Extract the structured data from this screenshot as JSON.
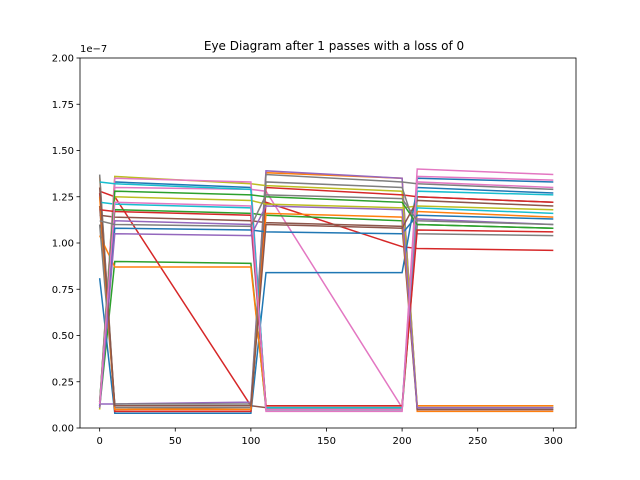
{
  "chart_data": {
    "type": "line",
    "title": "Eye Diagram after 1 passes with a loss of 0",
    "xlabel": "",
    "ylabel": "",
    "y_offset_label": "1e−7",
    "xlim": [
      -13,
      315
    ],
    "ylim": [
      0,
      2.0
    ],
    "grid": false,
    "x_ticks": [
      0,
      50,
      100,
      150,
      200,
      250,
      300
    ],
    "x_tick_labels": [
      "0",
      "50",
      "100",
      "150",
      "200",
      "250",
      "300"
    ],
    "y_ticks": [
      0,
      0.25,
      0.5,
      0.75,
      1.0,
      1.25,
      1.5,
      1.75,
      2.0
    ],
    "y_tick_labels": [
      "0.00",
      "0.25",
      "0.50",
      "0.75",
      "1.00",
      "1.25",
      "1.50",
      "1.75",
      "2.00"
    ],
    "colors": [
      "#1f77b4",
      "#ff7f0e",
      "#2ca02c",
      "#d62728",
      "#9467bd",
      "#8c564b",
      "#e377c2",
      "#7f7f7f",
      "#bcbd22",
      "#17becf"
    ],
    "series": [
      {
        "x": [
          0,
          10,
          100,
          110,
          200,
          210,
          300
        ],
        "y": [
          0.12,
          1.33,
          1.3,
          0.1,
          0.1,
          1.35,
          1.33
        ]
      },
      {
        "x": [
          0,
          10,
          100,
          110,
          200,
          210,
          300
        ],
        "y": [
          1.36,
          0.1,
          0.11,
          1.38,
          1.35,
          0.09,
          0.09
        ]
      },
      {
        "x": [
          0,
          10,
          100,
          110,
          200,
          210,
          300
        ],
        "y": [
          0.11,
          0.9,
          0.89,
          0.1,
          0.1,
          1.1,
          1.08
        ]
      },
      {
        "x": [
          0,
          10,
          100,
          110,
          200,
          210,
          300
        ],
        "y": [
          1.28,
          1.25,
          0.12,
          1.22,
          0.98,
          0.97,
          0.96
        ]
      },
      {
        "x": [
          0,
          10,
          100,
          110,
          200,
          210,
          300
        ],
        "y": [
          0.13,
          0.13,
          0.14,
          1.39,
          1.35,
          0.1,
          0.1
        ]
      },
      {
        "x": [
          0,
          10,
          100,
          110,
          200,
          210,
          300
        ],
        "y": [
          1.2,
          0.12,
          0.12,
          0.11,
          0.11,
          1.25,
          1.22
        ]
      },
      {
        "x": [
          0,
          10,
          100,
          110,
          200,
          210,
          300
        ],
        "y": [
          0.1,
          1.3,
          1.29,
          1.28,
          0.11,
          1.4,
          1.37
        ]
      },
      {
        "x": [
          0,
          10,
          100,
          110,
          200,
          210,
          300
        ],
        "y": [
          1.37,
          0.11,
          0.11,
          1.37,
          1.33,
          1.32,
          1.29
        ]
      },
      {
        "x": [
          0,
          10,
          100,
          110,
          200,
          210,
          300
        ],
        "y": [
          0.12,
          1.36,
          1.32,
          1.31,
          1.28,
          0.12,
          0.12
        ]
      },
      {
        "x": [
          0,
          10,
          100,
          110,
          200,
          210,
          300
        ],
        "y": [
          1.22,
          1.21,
          1.19,
          0.1,
          0.1,
          1.19,
          1.16
        ]
      },
      {
        "x": [
          0,
          10,
          100,
          110,
          200,
          210,
          300
        ],
        "y": [
          0.81,
          0.08,
          0.08,
          0.84,
          0.84,
          1.3,
          1.27
        ]
      },
      {
        "x": [
          0,
          10,
          100,
          110,
          200,
          210,
          300
        ],
        "y": [
          1.04,
          0.87,
          0.87,
          0.11,
          0.11,
          1.17,
          1.14
        ]
      },
      {
        "x": [
          0,
          10,
          100,
          110,
          200,
          210,
          300
        ],
        "y": [
          0.14,
          1.18,
          1.16,
          1.15,
          1.12,
          0.11,
          0.11
        ]
      },
      {
        "x": [
          0,
          10,
          100,
          110,
          200,
          210,
          300
        ],
        "y": [
          1.27,
          0.09,
          0.09,
          1.3,
          1.26,
          1.25,
          1.22
        ]
      },
      {
        "x": [
          0,
          10,
          100,
          110,
          200,
          210,
          300
        ],
        "y": [
          0.11,
          1.12,
          1.1,
          0.12,
          0.12,
          1.13,
          1.1
        ]
      },
      {
        "x": [
          0,
          10,
          100,
          110,
          200,
          210,
          300
        ],
        "y": [
          1.15,
          1.14,
          1.12,
          1.11,
          1.09,
          0.1,
          0.1
        ]
      },
      {
        "x": [
          0,
          10,
          100,
          110,
          200,
          210,
          300
        ],
        "y": [
          0.13,
          1.35,
          1.33,
          0.09,
          0.09,
          1.36,
          1.34
        ]
      },
      {
        "x": [
          0,
          10,
          100,
          110,
          200,
          210,
          300
        ],
        "y": [
          1.1,
          0.13,
          0.13,
          1.33,
          1.3,
          1.05,
          1.04
        ]
      },
      {
        "x": [
          0,
          10,
          100,
          110,
          200,
          210,
          300
        ],
        "y": [
          0.1,
          1.25,
          1.23,
          1.21,
          1.19,
          1.2,
          1.18
        ]
      },
      {
        "x": [
          0,
          10,
          100,
          110,
          200,
          210,
          300
        ],
        "y": [
          1.33,
          1.32,
          1.29,
          0.11,
          0.11,
          1.28,
          1.26
        ]
      },
      {
        "x": [
          0,
          10,
          100,
          110,
          200,
          210,
          300
        ],
        "y": [
          0.12,
          1.08,
          1.07,
          1.06,
          1.05,
          1.15,
          1.13
        ]
      },
      {
        "x": [
          0,
          10,
          100,
          110,
          200,
          210,
          300
        ],
        "y": [
          1.25,
          0.1,
          0.1,
          1.16,
          1.14,
          0.12,
          0.12
        ]
      },
      {
        "x": [
          0,
          10,
          100,
          110,
          200,
          210,
          300
        ],
        "y": [
          0.14,
          1.28,
          1.26,
          1.25,
          1.22,
          1.1,
          1.08
        ]
      },
      {
        "x": [
          0,
          10,
          100,
          110,
          200,
          210,
          300
        ],
        "y": [
          1.18,
          1.17,
          1.15,
          0.12,
          0.12,
          1.07,
          1.06
        ]
      },
      {
        "x": [
          0,
          10,
          100,
          110,
          200,
          210,
          300
        ],
        "y": [
          0.11,
          1.05,
          1.04,
          1.2,
          1.18,
          0.11,
          0.11
        ]
      },
      {
        "x": [
          0,
          10,
          100,
          110,
          200,
          210,
          300
        ],
        "y": [
          1.3,
          0.12,
          0.12,
          1.1,
          1.08,
          1.23,
          1.2
        ]
      },
      {
        "x": [
          0,
          10,
          100,
          110,
          200,
          210,
          300
        ],
        "y": [
          0.13,
          1.22,
          1.2,
          0.1,
          0.1,
          1.33,
          1.3
        ]
      },
      {
        "x": [
          0,
          10,
          100,
          110,
          200,
          210,
          300
        ],
        "y": [
          1.12,
          1.1,
          1.09,
          1.26,
          1.24,
          1.12,
          1.1
        ]
      }
    ]
  }
}
